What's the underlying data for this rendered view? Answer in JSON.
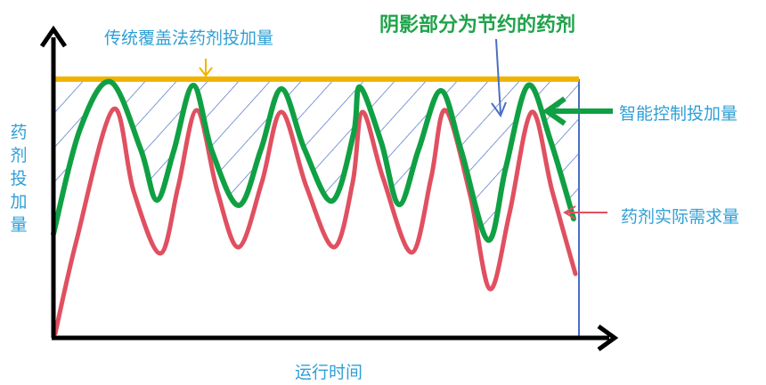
{
  "labels": {
    "traditional": "传统覆盖法药剂投加量",
    "saved": "阴影部分为节约的药剂",
    "smart": "智能控制投加量",
    "actual": "药剂实际需求量",
    "xaxis": "运行时间",
    "yaxis": [
      "药",
      "剂",
      "投",
      "加",
      "量"
    ]
  },
  "colors": {
    "traditional_line": "#f0b400",
    "smart_line": "#10a044",
    "actual_line": "#e05060",
    "hatch": "#4a6fc4",
    "text_blue": "#2f9fd6",
    "title_green": "#1fa34a"
  }
}
